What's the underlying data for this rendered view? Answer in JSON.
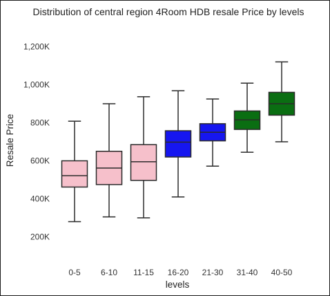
{
  "chart_data": {
    "type": "box",
    "title": "Distribution of central region 4Room HDB resale Price by levels",
    "xlabel": "levels",
    "ylabel": "Resale Price",
    "ylim": [
      100000,
      1300000
    ],
    "yticks": [
      200000,
      400000,
      600000,
      800000,
      1000000,
      1200000
    ],
    "ytick_labels": [
      "200K",
      "400K",
      "600K",
      "800K",
      "1,000K",
      "1,200K"
    ],
    "grid": false,
    "categories": [
      "0-5",
      "6-10",
      "11-15",
      "16-20",
      "21-30",
      "31-40",
      "40-50"
    ],
    "boxes": [
      {
        "category": "0-5",
        "whisker_low": 280000,
        "q1": 462000,
        "median": 522000,
        "q3": 600000,
        "whisker_high": 808000,
        "color": "#f6c0cb"
      },
      {
        "category": "6-10",
        "whisker_low": 305000,
        "q1": 475000,
        "median": 562000,
        "q3": 650000,
        "whisker_high": 900000,
        "color": "#f6c0cb"
      },
      {
        "category": "11-15",
        "whisker_low": 300000,
        "q1": 497000,
        "median": 595000,
        "q3": 685000,
        "whisker_high": 937000,
        "color": "#f6c0cb"
      },
      {
        "category": "16-20",
        "whisker_low": 410000,
        "q1": 620000,
        "median": 698000,
        "q3": 758000,
        "whisker_high": 968000,
        "color": "#1616f0"
      },
      {
        "category": "21-30",
        "whisker_low": 572000,
        "q1": 705000,
        "median": 750000,
        "q3": 795000,
        "whisker_high": 925000,
        "color": "#1616f0"
      },
      {
        "category": "31-40",
        "whisker_low": 645000,
        "q1": 765000,
        "median": 815000,
        "q3": 862000,
        "whisker_high": 1008000,
        "color": "#0a6e12"
      },
      {
        "category": "40-50",
        "whisker_low": 700000,
        "q1": 840000,
        "median": 900000,
        "q3": 960000,
        "whisker_high": 1120000,
        "color": "#0a6e12"
      }
    ],
    "line_color": "#2a2a2a"
  }
}
